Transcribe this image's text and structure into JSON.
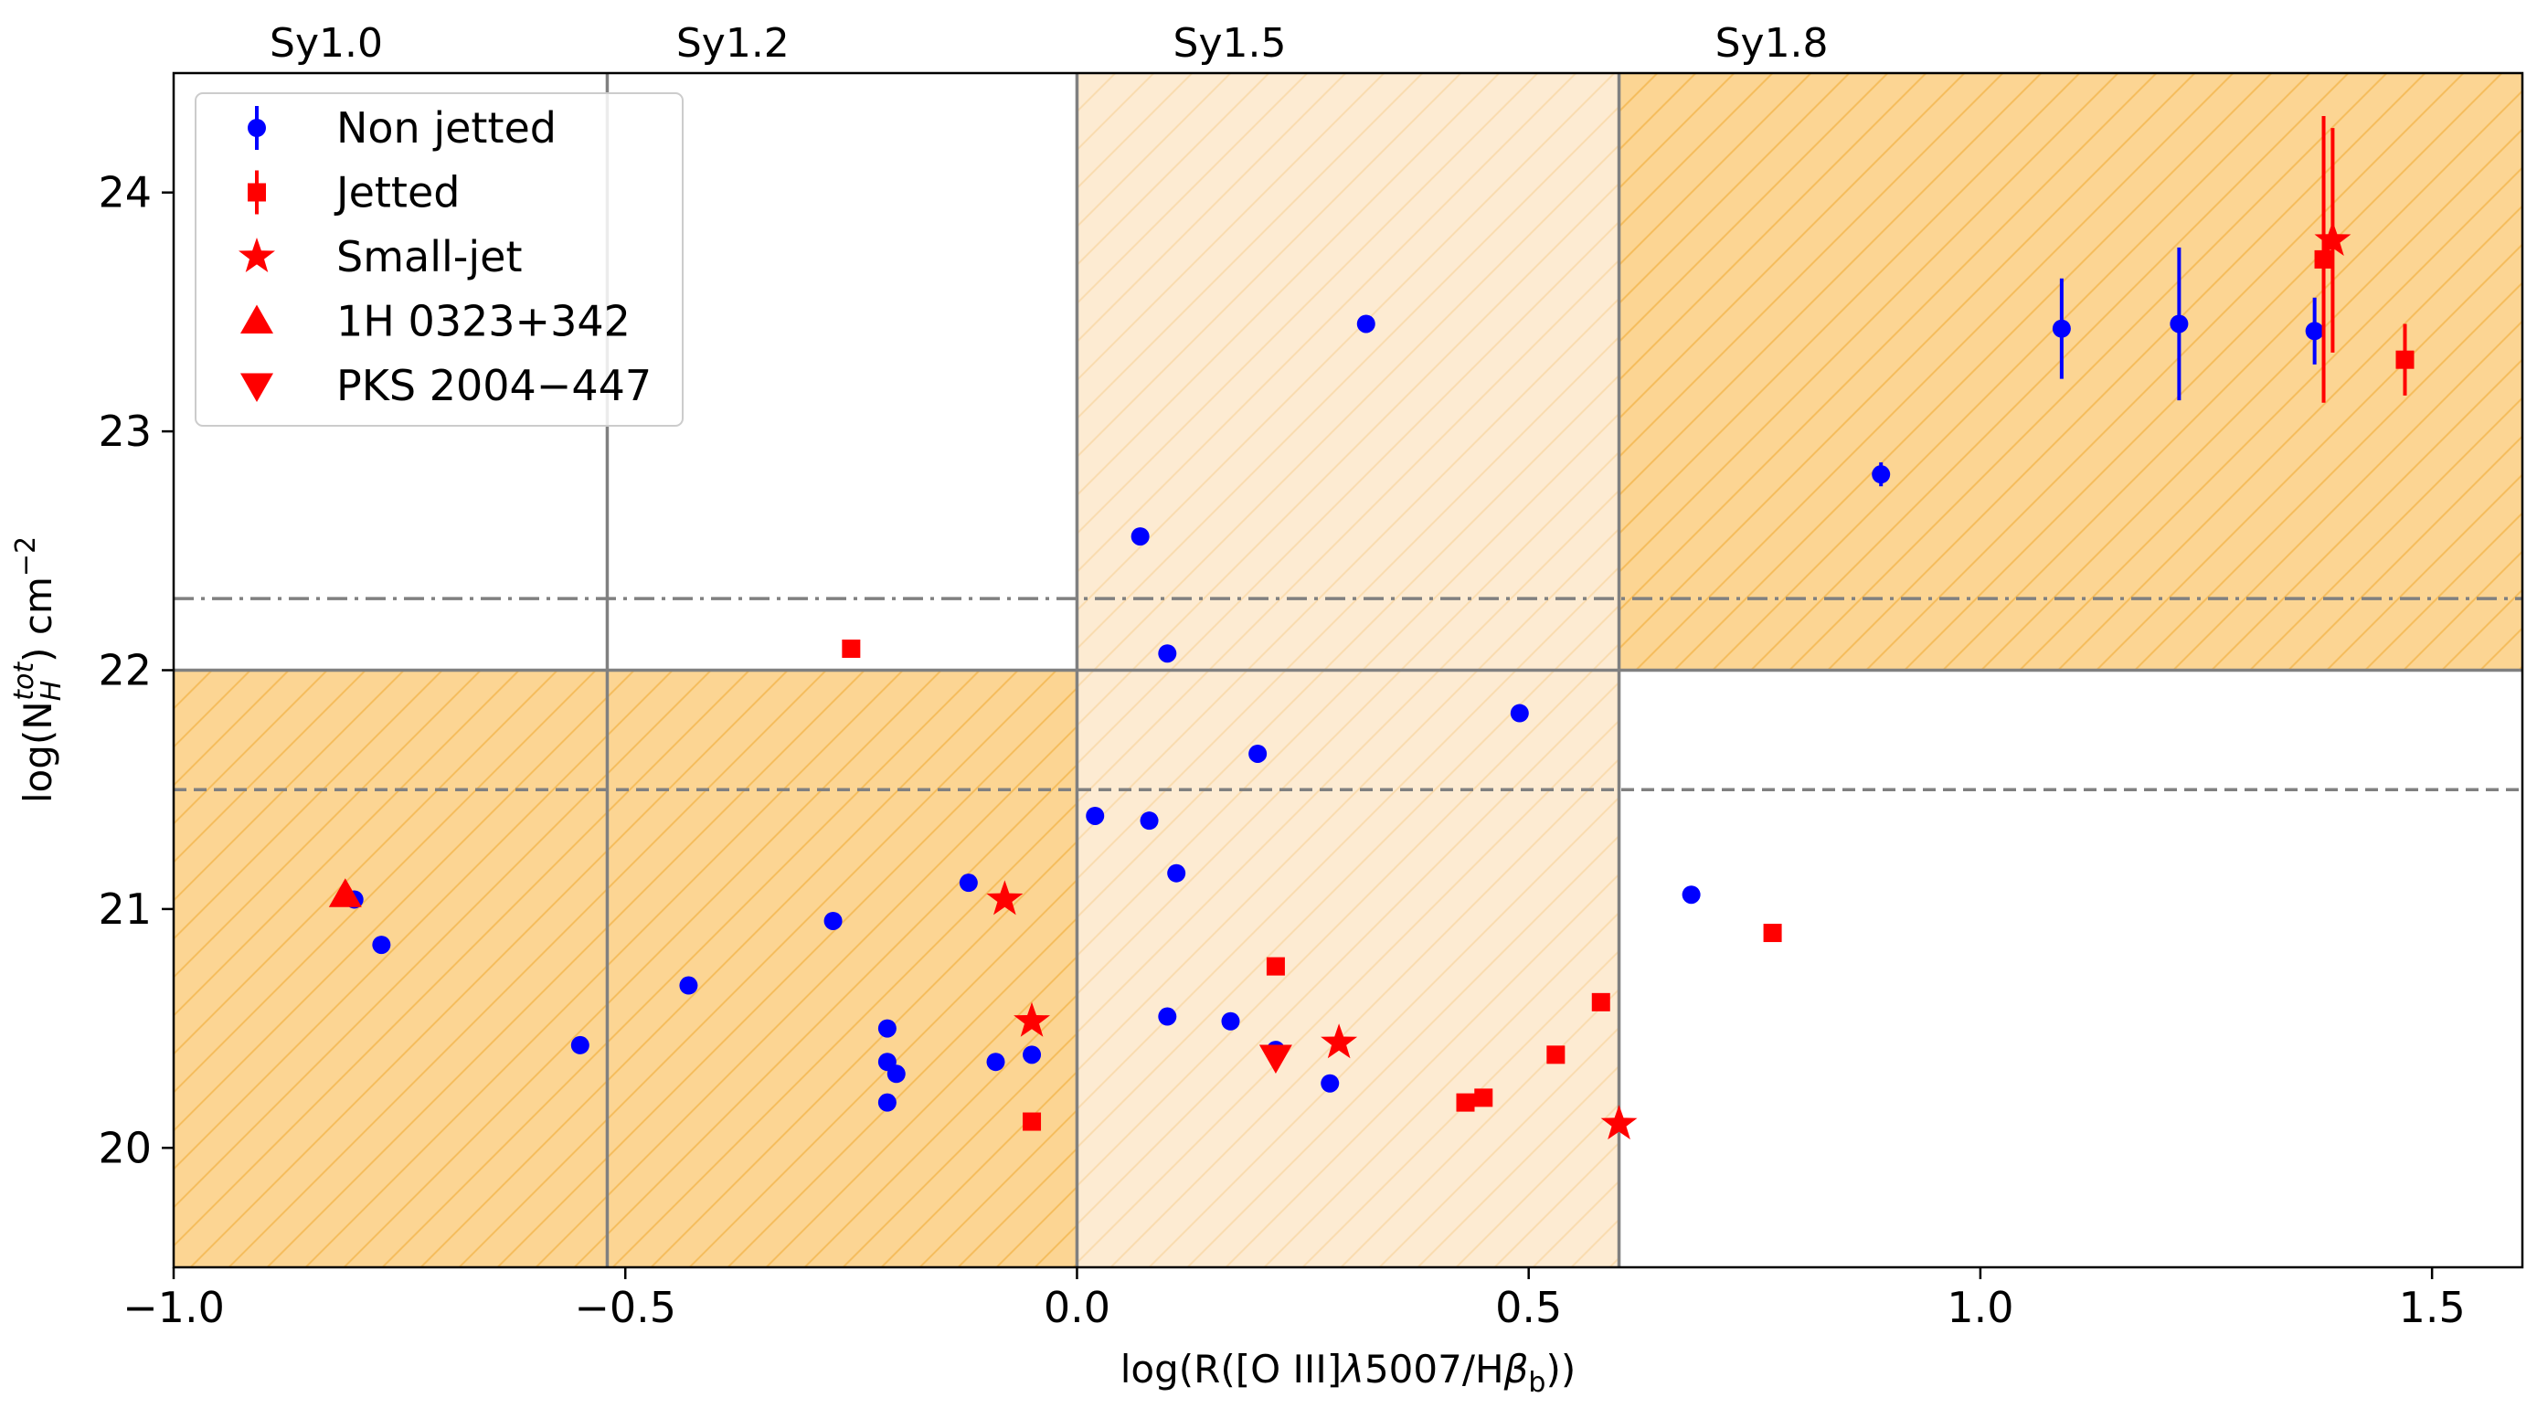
{
  "chart_data": {
    "type": "scatter",
    "xlabel_text": "log(R([O III]",
    "xlabel_lambda": "λ",
    "xlabel_mid": "5007/H",
    "xlabel_beta": "β",
    "xlabel_sub": "b",
    "xlabel_end": "))",
    "ylabel_main": "log(N",
    "ylabel_sub": "H",
    "ylabel_sup": "tot",
    "ylabel_unit": ") cm",
    "ylabel_exp": "−2",
    "xlim": [
      -1.0,
      1.6
    ],
    "ylim": [
      19.5,
      24.5
    ],
    "xticks": [
      {
        "v": -1.0,
        "label": "−1.0"
      },
      {
        "v": -0.5,
        "label": "−0.5"
      },
      {
        "v": 0.0,
        "label": "0.0"
      },
      {
        "v": 0.5,
        "label": "0.5"
      },
      {
        "v": 1.0,
        "label": "1.0"
      },
      {
        "v": 1.5,
        "label": "1.5"
      }
    ],
    "yticks": [
      {
        "v": 20,
        "label": "20"
      },
      {
        "v": 21,
        "label": "21"
      },
      {
        "v": 22,
        "label": "22"
      },
      {
        "v": 23,
        "label": "23"
      },
      {
        "v": 24,
        "label": "24"
      }
    ],
    "class_labels": [
      {
        "text": "Sy1.0",
        "x": -0.83
      },
      {
        "text": "Sy1.2",
        "x": -0.38
      },
      {
        "text": "Sy1.5",
        "x": 0.17
      },
      {
        "text": "Sy1.8",
        "x": 0.77
      }
    ],
    "class_boundaries_x": [
      -0.52,
      0.0,
      0.6
    ],
    "nh_threshold_y": 22,
    "dashdot_y": 22.3,
    "dashed_y": 21.5,
    "regions": [
      {
        "x0": -1.0,
        "x1": 0.0,
        "y0": 19.5,
        "y1": 22.0,
        "fill": "#fcd593",
        "hatch": "#f5bd5e"
      },
      {
        "x0": 0.0,
        "x1": 0.6,
        "y0": 19.5,
        "y1": 24.5,
        "fill": "#fdebd2",
        "hatch": "#f9dcb0"
      },
      {
        "x0": 0.6,
        "x1": 1.6,
        "y0": 22.0,
        "y1": 24.5,
        "fill": "#fcd593",
        "hatch": "#f5bd5e"
      }
    ],
    "colors": {
      "non_jetted": "#0000ff",
      "jetted": "#ff0000",
      "grid_line": "#808080"
    },
    "series": [
      {
        "name": "Non jetted",
        "marker": "circle",
        "color": "#0000ff",
        "points": [
          {
            "x": -0.8,
            "y": 21.04
          },
          {
            "x": -0.77,
            "y": 20.85
          },
          {
            "x": -0.55,
            "y": 20.43
          },
          {
            "x": -0.43,
            "y": 20.68
          },
          {
            "x": -0.27,
            "y": 20.95
          },
          {
            "x": -0.21,
            "y": 20.5
          },
          {
            "x": -0.21,
            "y": 20.36
          },
          {
            "x": -0.2,
            "y": 20.31
          },
          {
            "x": -0.21,
            "y": 20.19
          },
          {
            "x": -0.12,
            "y": 21.11
          },
          {
            "x": -0.09,
            "y": 20.36
          },
          {
            "x": -0.05,
            "y": 20.39
          },
          {
            "x": 0.02,
            "y": 21.39
          },
          {
            "x": 0.07,
            "y": 22.56
          },
          {
            "x": 0.08,
            "y": 21.37
          },
          {
            "x": 0.1,
            "y": 22.07
          },
          {
            "x": 0.11,
            "y": 21.15
          },
          {
            "x": 0.1,
            "y": 20.55
          },
          {
            "x": 0.17,
            "y": 20.53
          },
          {
            "x": 0.2,
            "y": 21.65
          },
          {
            "x": 0.22,
            "y": 20.41
          },
          {
            "x": 0.28,
            "y": 20.27
          },
          {
            "x": 0.32,
            "y": 23.45
          },
          {
            "x": 0.49,
            "y": 21.82
          },
          {
            "x": 0.68,
            "y": 21.06
          },
          {
            "x": 0.89,
            "y": 22.82,
            "err": 0.05
          },
          {
            "x": 1.09,
            "y": 23.43,
            "err": 0.21
          },
          {
            "x": 1.22,
            "y": 23.45,
            "err": 0.32
          },
          {
            "x": 1.37,
            "y": 23.42,
            "err": 0.14
          }
        ]
      },
      {
        "name": "Jetted",
        "marker": "square",
        "color": "#ff0000",
        "points": [
          {
            "x": -0.25,
            "y": 22.09
          },
          {
            "x": -0.05,
            "y": 20.11
          },
          {
            "x": 0.22,
            "y": 20.76
          },
          {
            "x": 0.43,
            "y": 20.19
          },
          {
            "x": 0.45,
            "y": 20.21
          },
          {
            "x": 0.53,
            "y": 20.39
          },
          {
            "x": 0.58,
            "y": 20.61
          },
          {
            "x": 0.77,
            "y": 20.9
          },
          {
            "x": 1.38,
            "y": 23.72,
            "err": 0.6
          },
          {
            "x": 1.47,
            "y": 23.3,
            "err": 0.15
          }
        ]
      },
      {
        "name": "Small-jet",
        "marker": "star",
        "color": "#ff0000",
        "points": [
          {
            "x": -0.08,
            "y": 21.04
          },
          {
            "x": -0.05,
            "y": 20.53
          },
          {
            "x": 0.29,
            "y": 20.44
          },
          {
            "x": 0.6,
            "y": 20.1
          },
          {
            "x": 1.39,
            "y": 23.8,
            "err": 0.47
          }
        ]
      },
      {
        "name": "1H 0323+342",
        "marker": "triangle-up",
        "color": "#ff0000",
        "points": [
          {
            "x": -0.81,
            "y": 21.06
          }
        ]
      },
      {
        "name": "PKS 2004−447",
        "marker": "triangle-down",
        "color": "#ff0000",
        "points": [
          {
            "x": 0.22,
            "y": 20.38
          }
        ]
      }
    ],
    "legend_position": "top-left"
  }
}
